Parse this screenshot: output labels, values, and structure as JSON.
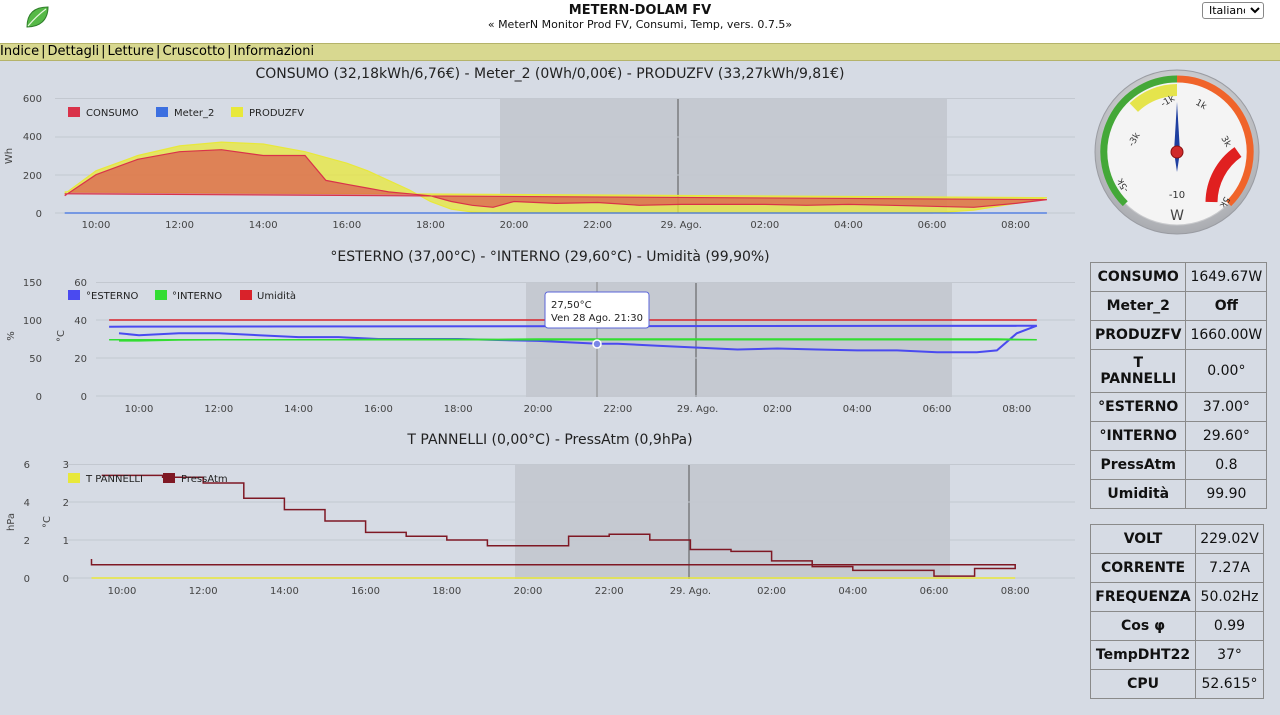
{
  "header": {
    "title": "METERN-DOLAM FV",
    "subtitle": "« MeterN Monitor Prod FV, Consumi, Temp, vers. 0.7.5»",
    "language": "Italiano"
  },
  "nav": {
    "items": [
      {
        "label": "Indice"
      },
      {
        "label": "Dettagli"
      },
      {
        "label": "Letture"
      },
      {
        "label": "Cruscotto"
      },
      {
        "label": "Informazioni"
      }
    ]
  },
  "charts": {
    "energy_title": "CONSUMO (32,18kWh/6,76€) - Meter_2 (0Wh/0,00€) - PRODUZFV (33,27kWh/9,81€)",
    "temp_title": "°ESTERNO (37,00°C) - °INTERNO (29,60°C) - Umidità (99,90%)",
    "panel_title": "T PANNELLI (0,00°C) - PressAtm (0,9hPa)",
    "tooltip": {
      "value": "27,50°C",
      "time": "Ven 28 Ago. 21:30"
    }
  },
  "gauge": {
    "unit": "W",
    "center_label": "-10",
    "ticks": [
      "-5k",
      "-3k",
      "-1k",
      "1k",
      "3k",
      "5k"
    ]
  },
  "readings_main": [
    {
      "label": "CONSUMO",
      "value": "1649.67W"
    },
    {
      "label": "Meter_2",
      "value": "Off"
    },
    {
      "label": "PRODUZFV",
      "value": "1660.00W"
    },
    {
      "label": "T PANNELLI",
      "value": "0.00°"
    },
    {
      "label": "°ESTERNO",
      "value": "37.00°"
    },
    {
      "label": "°INTERNO",
      "value": "29.60°"
    },
    {
      "label": "PressAtm",
      "value": "0.8"
    },
    {
      "label": "Umidità",
      "value": "99.90"
    }
  ],
  "readings_electric": [
    {
      "label": "VOLT",
      "value": "229.02V"
    },
    {
      "label": "CORRENTE",
      "value": "7.27A"
    },
    {
      "label": "FREQUENZA",
      "value": "50.02Hz"
    },
    {
      "label": "Cos φ",
      "value": "0.99"
    },
    {
      "label": "TempDHT22",
      "value": "37°"
    },
    {
      "label": "CPU",
      "value": "52.615°"
    }
  ],
  "chart_data": [
    {
      "type": "area",
      "title": "CONSUMO (32,18kWh/6,76€) - Meter_2 (0Wh/0,00€) - PRODUZFV (33,27kWh/9,81€)",
      "ylabel": "Wh",
      "ylim": [
        0,
        600
      ],
      "yticks": [
        "0",
        "200",
        "400",
        "600"
      ],
      "xticks": [
        "10:00",
        "12:00",
        "14:00",
        "16:00",
        "18:00",
        "20:00",
        "22:00",
        "29. Ago.",
        "02:00",
        "04:00",
        "06:00",
        "08:00"
      ],
      "x": [
        "09:15",
        "10:00",
        "11:00",
        "12:00",
        "13:00",
        "14:00",
        "15:00",
        "15:30",
        "16:00",
        "16:30",
        "17:00",
        "17:30",
        "18:00",
        "18:30",
        "19:00",
        "19:30",
        "20:00",
        "21:00",
        "22:00",
        "23:00",
        "00:00",
        "01:00",
        "02:00",
        "03:00",
        "04:00",
        "05:00",
        "06:00",
        "07:00",
        "08:00",
        "08:45",
        "09:15"
      ],
      "legend_position": "top-left",
      "series": [
        {
          "name": "CONSUMO",
          "color": "#d9324a",
          "values": [
            90,
            200,
            280,
            320,
            330,
            300,
            300,
            170,
            150,
            130,
            110,
            100,
            90,
            60,
            40,
            30,
            60,
            50,
            55,
            40,
            45,
            45,
            45,
            40,
            45,
            40,
            35,
            30,
            50,
            70,
            100
          ]
        },
        {
          "name": "Meter_2",
          "color": "#3c6fe0",
          "values": [
            0,
            0,
            0,
            0,
            0,
            0,
            0,
            0,
            0,
            0,
            0,
            0,
            0,
            0,
            0,
            0,
            0,
            0,
            0,
            0,
            0,
            0,
            0,
            0,
            0,
            0,
            0,
            0,
            0,
            0,
            0
          ]
        },
        {
          "name": "PRODUZFV",
          "color": "#e8e83a",
          "values": [
            100,
            220,
            300,
            350,
            370,
            360,
            320,
            290,
            260,
            220,
            170,
            120,
            60,
            20,
            5,
            0,
            0,
            0,
            0,
            0,
            0,
            0,
            0,
            0,
            0,
            0,
            0,
            15,
            50,
            80,
            110
          ]
        }
      ]
    },
    {
      "type": "line",
      "title": "°ESTERNO (37,00°C) - °INTERNO (29,60°C) - Umidità (99,90%)",
      "ylabel_left": "%",
      "ylabel_right": "°C",
      "ylim_humidity": [
        0,
        150
      ],
      "ylim_temp": [
        0,
        60
      ],
      "yticks_humidity": [
        "0",
        "50",
        "100",
        "150"
      ],
      "yticks_temp": [
        "0",
        "20",
        "40",
        "60"
      ],
      "xticks": [
        "10:00",
        "12:00",
        "14:00",
        "16:00",
        "18:00",
        "20:00",
        "22:00",
        "29. Ago.",
        "02:00",
        "04:00",
        "06:00",
        "08:00"
      ],
      "x": [
        "09:30",
        "10:00",
        "11:00",
        "12:00",
        "13:00",
        "14:00",
        "15:00",
        "16:00",
        "17:00",
        "18:00",
        "19:00",
        "20:00",
        "21:00",
        "21:30",
        "22:00",
        "23:00",
        "00:00",
        "01:00",
        "02:00",
        "03:00",
        "04:00",
        "05:00",
        "06:00",
        "07:00",
        "07:30",
        "08:00",
        "08:30",
        "09:15"
      ],
      "legend_position": "top-left",
      "series": [
        {
          "name": "°ESTERNO",
          "color": "#4a4af0",
          "values": [
            33,
            32,
            33,
            33,
            32,
            31,
            31,
            30,
            30,
            30,
            29.5,
            29,
            28,
            27.5,
            27.5,
            26.5,
            25.5,
            24.5,
            25,
            24.5,
            24,
            24,
            23,
            23,
            24,
            33,
            37,
            36.5
          ]
        },
        {
          "name": "°INTERNO",
          "color": "#33dd33",
          "values": [
            29,
            29,
            29.5,
            29.6,
            29.6,
            29.6,
            29.6,
            29.8,
            29.8,
            29.8,
            29.8,
            30,
            30,
            30,
            30,
            30,
            30,
            30,
            30,
            30,
            30,
            30,
            30,
            30,
            30,
            29.8,
            29.6,
            29.6
          ]
        },
        {
          "name": "Umidità",
          "color": "#d9222a",
          "values": [
            100,
            100,
            100,
            100,
            100,
            100,
            100,
            100,
            100,
            100,
            100,
            100,
            100,
            100,
            100,
            100,
            100,
            100,
            100,
            100,
            100,
            100,
            100,
            100,
            100,
            100,
            100,
            100
          ]
        }
      ],
      "tooltip": {
        "x": "21:30",
        "value": "27,50°C",
        "label": "Ven 28 Ago. 21:30"
      }
    },
    {
      "type": "line",
      "title": "T PANNELLI (0,00°C) - PressAtm (0,9hPa)",
      "ylabel_left": "hPa",
      "ylabel_right": "°C",
      "ylim_pressure": [
        0,
        6
      ],
      "ylim_temp": [
        0,
        3
      ],
      "yticks_pressure": [
        "0",
        "2",
        "4",
        "6"
      ],
      "yticks_temp": [
        "0",
        "1",
        "2",
        "3"
      ],
      "xticks": [
        "10:00",
        "12:00",
        "14:00",
        "16:00",
        "18:00",
        "20:00",
        "22:00",
        "29. Ago.",
        "02:00",
        "04:00",
        "06:00",
        "08:00"
      ],
      "x": [
        "09:30",
        "10:00",
        "11:00",
        "12:00",
        "13:00",
        "14:00",
        "15:00",
        "16:00",
        "17:00",
        "18:00",
        "19:00",
        "20:00",
        "21:00",
        "22:00",
        "23:00",
        "00:00",
        "01:00",
        "02:00",
        "03:00",
        "04:00",
        "05:00",
        "06:00",
        "07:00",
        "08:00",
        "09:15"
      ],
      "legend_position": "top-left",
      "series": [
        {
          "name": "T PANNELLI",
          "color": "#e8e83a",
          "values": [
            0,
            0,
            0,
            0,
            0,
            0,
            0,
            0,
            0,
            0,
            0,
            0,
            0,
            0,
            0,
            0,
            0,
            0,
            0,
            0,
            0,
            0,
            0,
            0,
            0
          ]
        },
        {
          "name": "PressAtm",
          "color": "#7f1824",
          "values": [
            5.4,
            5.4,
            5.3,
            5.0,
            4.2,
            3.6,
            3.0,
            2.4,
            2.2,
            2.0,
            1.7,
            1.7,
            2.2,
            2.3,
            2.0,
            1.5,
            1.4,
            0.9,
            0.6,
            0.4,
            0.4,
            0.1,
            0.5,
            0.7,
            1.0
          ]
        }
      ]
    }
  ]
}
